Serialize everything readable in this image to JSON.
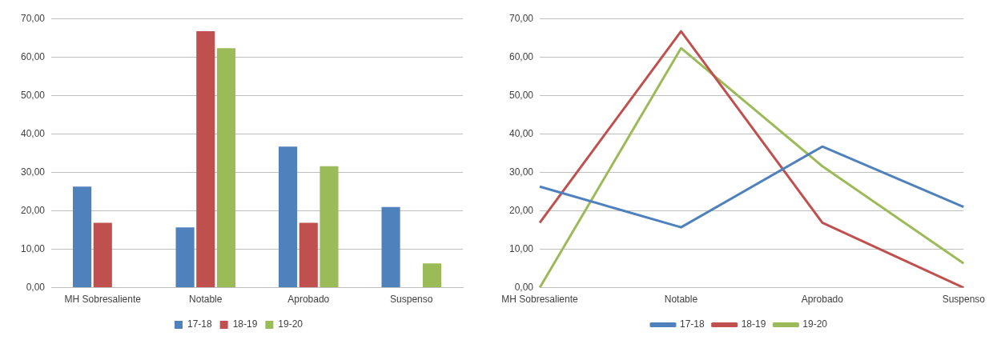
{
  "chart_data": [
    {
      "type": "bar",
      "categories": [
        "MH Sobresaliente",
        "Notable",
        "Aprobado",
        "Suspenso"
      ],
      "series": [
        {
          "name": "17-18",
          "color": "#4f81bd",
          "values": [
            26.3,
            15.7,
            36.7,
            21.0
          ]
        },
        {
          "name": "18-19",
          "color": "#c0504d",
          "values": [
            16.9,
            66.7,
            16.9,
            0
          ]
        },
        {
          "name": "19-20",
          "color": "#9bbb59",
          "values": [
            0,
            62.3,
            31.6,
            6.3
          ]
        }
      ],
      "ylim": [
        0,
        70
      ],
      "yticks": [
        {
          "value": 0,
          "label": "0,00"
        },
        {
          "value": 10,
          "label": "10,00"
        },
        {
          "value": 20,
          "label": "20,00"
        },
        {
          "value": 30,
          "label": "30,00"
        },
        {
          "value": 40,
          "label": "40,00"
        },
        {
          "value": 50,
          "label": "50,00"
        },
        {
          "value": 60,
          "label": "60,00"
        },
        {
          "value": 70,
          "label": "70,00"
        }
      ],
      "grid": "y",
      "legend": "bottom"
    },
    {
      "type": "line",
      "categories": [
        "MH Sobresaliente",
        "Notable",
        "Aprobado",
        "Suspenso"
      ],
      "series": [
        {
          "name": "17-18",
          "color": "#4f81bd",
          "values": [
            26.3,
            15.7,
            36.7,
            21.0
          ]
        },
        {
          "name": "18-19",
          "color": "#c0504d",
          "values": [
            16.9,
            66.7,
            16.9,
            0
          ]
        },
        {
          "name": "19-20",
          "color": "#9bbb59",
          "values": [
            0,
            62.3,
            31.6,
            6.3
          ]
        }
      ],
      "ylim": [
        0,
        70
      ],
      "yticks": [
        {
          "value": 0,
          "label": "0,00"
        },
        {
          "value": 10,
          "label": "10,00"
        },
        {
          "value": 20,
          "label": "20,00"
        },
        {
          "value": 30,
          "label": "30,00"
        },
        {
          "value": 40,
          "label": "40,00"
        },
        {
          "value": 50,
          "label": "50,00"
        },
        {
          "value": 60,
          "label": "60,00"
        },
        {
          "value": 70,
          "label": "70,00"
        }
      ],
      "grid": "y",
      "legend": "bottom",
      "marker": "none"
    }
  ]
}
